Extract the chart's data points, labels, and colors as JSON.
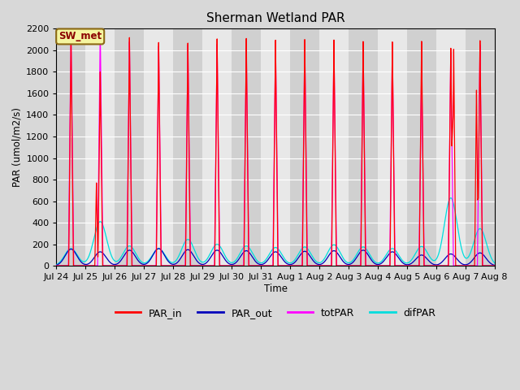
{
  "title": "Sherman Wetland PAR",
  "ylabel": "PAR (umol/m2/s)",
  "xlabel": "Time",
  "annotation": "SW_met",
  "ylim": [
    0,
    2200
  ],
  "yticks": [
    0,
    200,
    400,
    600,
    800,
    1000,
    1200,
    1400,
    1600,
    1800,
    2000,
    2200
  ],
  "xtick_labels": [
    "Jul 24",
    "Jul 25",
    "Jul 26",
    "Jul 27",
    "Jul 28",
    "Jul 29",
    "Jul 30",
    "Jul 31",
    "Aug 1",
    "Aug 2",
    "Aug 3",
    "Aug 4",
    "Aug 5",
    "Aug 6",
    "Aug 7",
    "Aug 8"
  ],
  "colors": {
    "PAR_in": "#ff0000",
    "PAR_out": "#0000bb",
    "totPAR": "#ff00ff",
    "difPAR": "#00dddd"
  },
  "num_days": 15,
  "par_in_peaks": [
    2100,
    1800,
    2120,
    2075,
    2070,
    2110,
    2115,
    2100,
    2105,
    2100,
    2085,
    2080,
    2085,
    2020,
    2090
  ],
  "par_in_peaks2": [
    0,
    770,
    0,
    0,
    0,
    0,
    0,
    0,
    0,
    0,
    0,
    0,
    0,
    2010,
    1630
  ],
  "totpar_peaks": [
    2190,
    2190,
    2080,
    2040,
    2050,
    2060,
    2030,
    2060,
    2050,
    2050,
    2050,
    2030,
    1810,
    1980,
    2050
  ],
  "par_out_peaks": [
    155,
    130,
    145,
    160,
    150,
    145,
    140,
    130,
    135,
    140,
    145,
    130,
    100,
    110,
    120
  ],
  "difpar_peaks": [
    160,
    410,
    185,
    160,
    245,
    200,
    185,
    170,
    175,
    195,
    175,
    160,
    180,
    630,
    345
  ],
  "bg_light": "#e8e8e8",
  "bg_dark": "#d0d0d0",
  "fig_bg": "#d8d8d8",
  "grid_color": "#ffffff"
}
